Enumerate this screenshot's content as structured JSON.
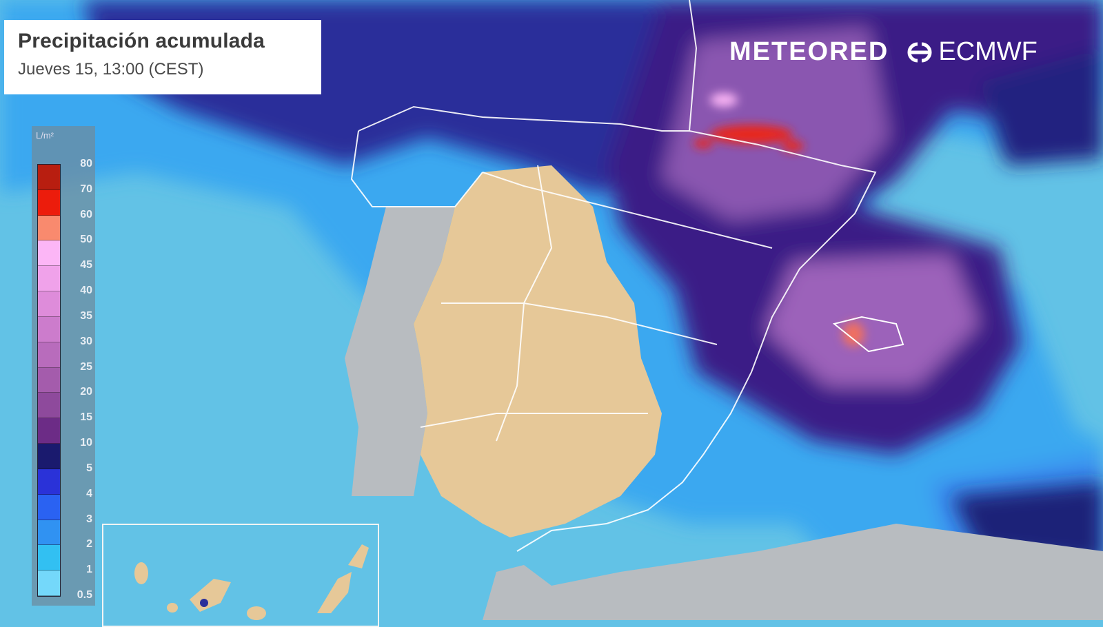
{
  "header": {
    "title": "Precipitación acumulada",
    "subtitle": "Jueves 15, 13:00 (CEST)"
  },
  "branding": {
    "meteored": "METEORED",
    "ecmwf": "ECMWF"
  },
  "legend": {
    "unit": "L/m²",
    "labels": [
      "80",
      "70",
      "60",
      "50",
      "45",
      "40",
      "35",
      "30",
      "25",
      "20",
      "15",
      "10",
      "5",
      "4",
      "3",
      "2",
      "1",
      "0.5"
    ],
    "colors": [
      "#b81e10",
      "#ec1c0c",
      "#f98a6e",
      "#fcb6f6",
      "#f0a2ea",
      "#de8cda",
      "#cc7ccc",
      "#b86cbc",
      "#a45cac",
      "#8e4a9c",
      "#6c2c86",
      "#1a1a6e",
      "#2a32d8",
      "#2a62f2",
      "#3092f2",
      "#32c0f2",
      "#74d8fa"
    ]
  },
  "colors": {
    "sea": "#62c2e6",
    "land_spain": "#e6c898",
    "land_other": "#b8bcc0"
  }
}
